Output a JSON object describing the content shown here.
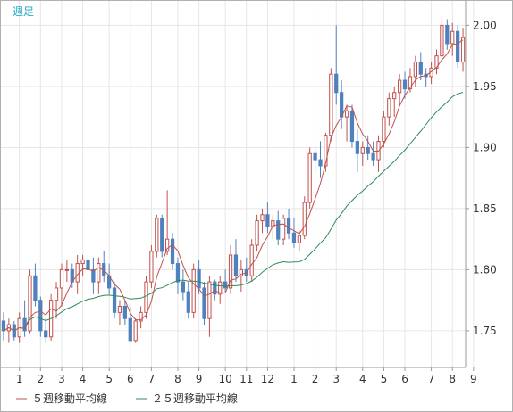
{
  "timeframe_label": "週足",
  "colors": {
    "up": "#c0504d",
    "down": "#4f81bd",
    "ma5": "#c0504d",
    "ma25": "#2e8b57",
    "grid": "#e6e6e6",
    "axis": "#999999",
    "timeframe": "#27a9c9"
  },
  "legend": [
    {
      "label": "５週移動平均線",
      "color": "#c0504d"
    },
    {
      "label": "２５週移動平均線",
      "color": "#2e8b57"
    }
  ],
  "chart_data": {
    "type": "candlestick",
    "ylim": [
      1.72,
      2.02
    ],
    "yticks": [
      1.75,
      1.8,
      1.85,
      1.9,
      1.95,
      2.0
    ],
    "ytick_labels": [
      "1.75",
      "1.80",
      "1.85",
      "1.90",
      "1.95",
      "2.00"
    ],
    "x_month_labels": [
      {
        "label": "1",
        "index": 3
      },
      {
        "label": "2",
        "index": 7
      },
      {
        "label": "3",
        "index": 11
      },
      {
        "label": "4",
        "index": 15
      },
      {
        "label": "5",
        "index": 20
      },
      {
        "label": "6",
        "index": 24
      },
      {
        "label": "7",
        "index": 28
      },
      {
        "label": "8",
        "index": 33
      },
      {
        "label": "9",
        "index": 37
      },
      {
        "label": "10",
        "index": 42
      },
      {
        "label": "11",
        "index": 46
      },
      {
        "label": "12",
        "index": 50
      },
      {
        "label": "1",
        "index": 55
      },
      {
        "label": "2",
        "index": 59
      },
      {
        "label": "3",
        "index": 63
      },
      {
        "label": "4",
        "index": 68
      },
      {
        "label": "5",
        "index": 72
      },
      {
        "label": "6",
        "index": 76
      },
      {
        "label": "7",
        "index": 81
      },
      {
        "label": "8",
        "index": 85
      },
      {
        "label": "9",
        "index": 89
      }
    ],
    "candles": [
      [
        1.758,
        1.765,
        1.742,
        1.75
      ],
      [
        1.75,
        1.76,
        1.74,
        1.755
      ],
      [
        1.755,
        1.758,
        1.742,
        1.745
      ],
      [
        1.745,
        1.765,
        1.74,
        1.76
      ],
      [
        1.76,
        1.775,
        1.745,
        1.75
      ],
      [
        1.75,
        1.8,
        1.748,
        1.795
      ],
      [
        1.795,
        1.805,
        1.77,
        1.775
      ],
      [
        1.775,
        1.778,
        1.745,
        1.75
      ],
      [
        1.75,
        1.76,
        1.74,
        1.745
      ],
      [
        1.745,
        1.78,
        1.742,
        1.775
      ],
      [
        1.775,
        1.79,
        1.76,
        1.785
      ],
      [
        1.785,
        1.805,
        1.77,
        1.8
      ],
      [
        1.8,
        1.808,
        1.79,
        1.8
      ],
      [
        1.8,
        1.805,
        1.785,
        1.79
      ],
      [
        1.79,
        1.812,
        1.78,
        1.805
      ],
      [
        1.805,
        1.812,
        1.795,
        1.808
      ],
      [
        1.808,
        1.815,
        1.795,
        1.8
      ],
      [
        1.8,
        1.81,
        1.78,
        1.79
      ],
      [
        1.79,
        1.81,
        1.78,
        1.805
      ],
      [
        1.805,
        1.815,
        1.79,
        1.795
      ],
      [
        1.795,
        1.805,
        1.78,
        1.785
      ],
      [
        1.785,
        1.79,
        1.76,
        1.765
      ],
      [
        1.765,
        1.775,
        1.755,
        1.77
      ],
      [
        1.77,
        1.775,
        1.755,
        1.76
      ],
      [
        1.76,
        1.77,
        1.74,
        1.742
      ],
      [
        1.742,
        1.76,
        1.74,
        1.758
      ],
      [
        1.758,
        1.77,
        1.752,
        1.765
      ],
      [
        1.765,
        1.795,
        1.76,
        1.79
      ],
      [
        1.79,
        1.82,
        1.785,
        1.815
      ],
      [
        1.815,
        1.845,
        1.81,
        1.842
      ],
      [
        1.842,
        1.845,
        1.81,
        1.815
      ],
      [
        1.815,
        1.865,
        1.812,
        1.825
      ],
      [
        1.825,
        1.83,
        1.8,
        1.805
      ],
      [
        1.805,
        1.81,
        1.78,
        1.79
      ],
      [
        1.79,
        1.8,
        1.775,
        1.782
      ],
      [
        1.782,
        1.79,
        1.76,
        1.765
      ],
      [
        1.765,
        1.805,
        1.76,
        1.8
      ],
      [
        1.8,
        1.808,
        1.78,
        1.785
      ],
      [
        1.785,
        1.79,
        1.755,
        1.76
      ],
      [
        1.76,
        1.795,
        1.745,
        1.79
      ],
      [
        1.79,
        1.792,
        1.775,
        1.78
      ],
      [
        1.78,
        1.795,
        1.772,
        1.79
      ],
      [
        1.79,
        1.8,
        1.782,
        1.785
      ],
      [
        1.785,
        1.82,
        1.78,
        1.812
      ],
      [
        1.812,
        1.825,
        1.79,
        1.795
      ],
      [
        1.795,
        1.808,
        1.782,
        1.8
      ],
      [
        1.8,
        1.81,
        1.79,
        1.795
      ],
      [
        1.795,
        1.825,
        1.79,
        1.82
      ],
      [
        1.82,
        1.845,
        1.815,
        1.84
      ],
      [
        1.84,
        1.85,
        1.83,
        1.845
      ],
      [
        1.845,
        1.855,
        1.83,
        1.835
      ],
      [
        1.835,
        1.845,
        1.825,
        1.84
      ],
      [
        1.84,
        1.848,
        1.82,
        1.825
      ],
      [
        1.825,
        1.845,
        1.82,
        1.842
      ],
      [
        1.842,
        1.85,
        1.825,
        1.83
      ],
      [
        1.83,
        1.842,
        1.818,
        1.822
      ],
      [
        1.822,
        1.832,
        1.815,
        1.828
      ],
      [
        1.828,
        1.86,
        1.825,
        1.855
      ],
      [
        1.855,
        1.9,
        1.85,
        1.895
      ],
      [
        1.895,
        1.9,
        1.88,
        1.89
      ],
      [
        1.89,
        1.905,
        1.875,
        1.885
      ],
      [
        1.885,
        1.912,
        1.88,
        1.91
      ],
      [
        1.91,
        1.965,
        1.905,
        1.96
      ],
      [
        1.96,
        2.0,
        1.935,
        1.945
      ],
      [
        1.945,
        1.955,
        1.915,
        1.925
      ],
      [
        1.925,
        1.935,
        1.905,
        1.93
      ],
      [
        1.93,
        1.935,
        1.9,
        1.905
      ],
      [
        1.905,
        1.915,
        1.88,
        1.895
      ],
      [
        1.895,
        1.905,
        1.885,
        1.9
      ],
      [
        1.9,
        1.91,
        1.89,
        1.895
      ],
      [
        1.895,
        1.905,
        1.885,
        1.89
      ],
      [
        1.89,
        1.91,
        1.88,
        1.905
      ],
      [
        1.905,
        1.93,
        1.9,
        1.925
      ],
      [
        1.925,
        1.945,
        1.918,
        1.94
      ],
      [
        1.94,
        1.95,
        1.925,
        1.945
      ],
      [
        1.945,
        1.96,
        1.935,
        1.955
      ],
      [
        1.955,
        1.962,
        1.94,
        1.948
      ],
      [
        1.948,
        1.965,
        1.945,
        1.958
      ],
      [
        1.958,
        1.975,
        1.95,
        1.97
      ],
      [
        1.97,
        1.978,
        1.955,
        1.96
      ],
      [
        1.96,
        1.965,
        1.95,
        1.958
      ],
      [
        1.958,
        1.97,
        1.952,
        1.965
      ],
      [
        1.965,
        1.98,
        1.96,
        1.975
      ],
      [
        1.975,
        2.008,
        1.97,
        2.0
      ],
      [
        2.0,
        2.005,
        1.98,
        1.985
      ],
      [
        1.985,
        2.002,
        1.975,
        1.995
      ],
      [
        1.995,
        2.0,
        1.965,
        1.97
      ],
      [
        1.97,
        1.998,
        1.962,
        1.99
      ]
    ]
  }
}
